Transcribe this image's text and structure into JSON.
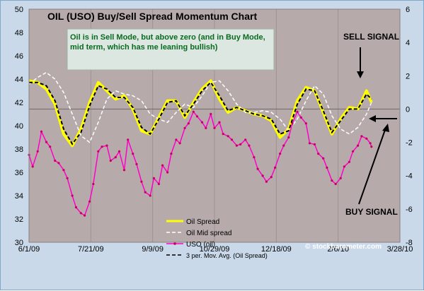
{
  "chart_data": {
    "type": "line",
    "title": "OIL (USO) Buy/Sell Spread Momentum Chart",
    "annotation": "Oil is in Sell Mode, but above zero (and in Buy Mode, mid term, which has me leaning bullish)",
    "annotation_lines": [
      "Oil is in Sell Mode, but above zero (and in Buy Mode,",
      "mid term, which has me leaning bullish)"
    ],
    "signals": {
      "sell": "SELL SIGNAL",
      "buy": "BUY SIGNAL"
    },
    "credit": "© stockbarometer.com",
    "x_tick_labels": [
      "6/1/09",
      "7/21/09",
      "9/9/09",
      "10/29/09",
      "12/18/09",
      "2/6/10",
      "3/28/10"
    ],
    "x_tick_dates": [
      "2009-06-01",
      "2009-07-21",
      "2009-09-09",
      "2009-10-29",
      "2009-12-18",
      "2010-02-06",
      "2010-03-28"
    ],
    "xlim": [
      "2009-06-01",
      "2010-03-28"
    ],
    "y_left": {
      "lim": [
        30,
        50
      ],
      "ticks": [
        30,
        32,
        34,
        36,
        38,
        40,
        42,
        44,
        46,
        48,
        50
      ]
    },
    "y_right": {
      "lim": [
        -8,
        6
      ],
      "ticks": [
        -8,
        -6,
        -4,
        -2,
        0,
        2,
        4,
        6
      ]
    },
    "zero_line": 0,
    "legend": {
      "position": "bottom-center"
    },
    "series": [
      {
        "name": "Oil Spread",
        "axis": "right",
        "color": "#ffff00",
        "style": "solid",
        "x": [
          "2009-06-01",
          "2009-06-08",
          "2009-06-15",
          "2009-06-22",
          "2009-06-29",
          "2009-07-06",
          "2009-07-13",
          "2009-07-20",
          "2009-07-27",
          "2009-08-03",
          "2009-08-10",
          "2009-08-17",
          "2009-08-24",
          "2009-08-31",
          "2009-09-07",
          "2009-09-14",
          "2009-09-21",
          "2009-09-28",
          "2009-10-05",
          "2009-10-12",
          "2009-10-19",
          "2009-10-26",
          "2009-11-02",
          "2009-11-09",
          "2009-11-16",
          "2009-11-23",
          "2009-11-30",
          "2009-12-07",
          "2009-12-14",
          "2009-12-21",
          "2009-12-28",
          "2010-01-04",
          "2010-01-11",
          "2010-01-18",
          "2010-01-25",
          "2010-02-01",
          "2010-02-08",
          "2010-02-15",
          "2010-02-22",
          "2010-03-01",
          "2010-03-05"
        ],
        "y": [
          1.7,
          1.6,
          1.2,
          0.3,
          -1.5,
          -2.2,
          -1.2,
          0.4,
          1.6,
          1.1,
          0.6,
          0.8,
          0.0,
          -1.3,
          -1.5,
          -0.5,
          0.5,
          0.5,
          -0.5,
          0.4,
          1.2,
          1.7,
          0.6,
          -0.2,
          0.1,
          -0.1,
          -0.3,
          -0.4,
          -0.7,
          -1.7,
          -1.2,
          0.5,
          1.3,
          1.1,
          -0.2,
          -1.5,
          -0.6,
          0.1,
          0.0,
          1.1,
          0.4
        ]
      },
      {
        "name": "Oil Mid spread",
        "axis": "right",
        "color": "#ffffff",
        "style": "dashed",
        "x": [
          "2009-06-01",
          "2009-06-08",
          "2009-06-15",
          "2009-06-22",
          "2009-06-29",
          "2009-07-06",
          "2009-07-13",
          "2009-07-20",
          "2009-07-27",
          "2009-08-03",
          "2009-08-10",
          "2009-08-17",
          "2009-08-24",
          "2009-08-31",
          "2009-09-07",
          "2009-09-14",
          "2009-09-21",
          "2009-09-28",
          "2009-10-05",
          "2009-10-12",
          "2009-10-19",
          "2009-10-26",
          "2009-11-02",
          "2009-11-09",
          "2009-11-16",
          "2009-11-23",
          "2009-11-30",
          "2009-12-07",
          "2009-12-14",
          "2009-12-21",
          "2009-12-28",
          "2010-01-04",
          "2010-01-11",
          "2010-01-18",
          "2010-01-25",
          "2010-02-01",
          "2010-02-08",
          "2010-02-15",
          "2010-02-22",
          "2010-03-01",
          "2010-03-05"
        ],
        "y": [
          1.5,
          1.9,
          2.2,
          1.8,
          1.0,
          -0.3,
          -1.6,
          -2.0,
          -0.8,
          0.6,
          1.1,
          0.9,
          0.8,
          0.5,
          -0.3,
          -0.6,
          -0.8,
          -0.2,
          0.3,
          0.1,
          0.8,
          1.6,
          1.7,
          1.1,
          0.3,
          -0.2,
          -0.2,
          -0.1,
          -0.2,
          -0.6,
          -1.3,
          -0.6,
          0.5,
          1.4,
          0.9,
          -0.4,
          -1.2,
          -1.5,
          -1.1,
          -0.3,
          0.4
        ]
      },
      {
        "name": "USO (oil)",
        "axis": "left",
        "color": "#ff00cc",
        "style": "solid-markers",
        "x": [
          "2009-06-01",
          "2009-06-04",
          "2009-06-08",
          "2009-06-11",
          "2009-06-15",
          "2009-06-18",
          "2009-06-22",
          "2009-06-25",
          "2009-06-29",
          "2009-07-02",
          "2009-07-06",
          "2009-07-09",
          "2009-07-13",
          "2009-07-16",
          "2009-07-20",
          "2009-07-23",
          "2009-07-27",
          "2009-07-30",
          "2009-08-03",
          "2009-08-06",
          "2009-08-10",
          "2009-08-13",
          "2009-08-17",
          "2009-08-20",
          "2009-08-24",
          "2009-08-27",
          "2009-08-31",
          "2009-09-03",
          "2009-09-07",
          "2009-09-10",
          "2009-09-14",
          "2009-09-17",
          "2009-09-21",
          "2009-09-24",
          "2009-09-28",
          "2009-10-01",
          "2009-10-05",
          "2009-10-08",
          "2009-10-12",
          "2009-10-15",
          "2009-10-19",
          "2009-10-22",
          "2009-10-26",
          "2009-10-29",
          "2009-11-02",
          "2009-11-05",
          "2009-11-09",
          "2009-11-12",
          "2009-11-16",
          "2009-11-19",
          "2009-11-23",
          "2009-11-26",
          "2009-11-30",
          "2009-12-03",
          "2009-12-07",
          "2009-12-10",
          "2009-12-14",
          "2009-12-17",
          "2009-12-21",
          "2009-12-24",
          "2009-12-28",
          "2009-12-31",
          "2010-01-04",
          "2010-01-07",
          "2010-01-11",
          "2010-01-14",
          "2010-01-18",
          "2010-01-21",
          "2010-01-25",
          "2010-01-28",
          "2010-02-01",
          "2010-02-04",
          "2010-02-08",
          "2010-02-11",
          "2010-02-15",
          "2010-02-18",
          "2010-02-22",
          "2010-02-25",
          "2010-03-01",
          "2010-03-04",
          "2010-03-05"
        ],
        "y": [
          37.5,
          36.5,
          37.8,
          39.5,
          38.6,
          38.2,
          37.0,
          36.8,
          36.2,
          35.5,
          34.0,
          33.0,
          32.5,
          32.3,
          33.5,
          35.0,
          37.8,
          38.2,
          38.3,
          37.0,
          37.3,
          37.8,
          36.2,
          38.8,
          37.6,
          36.7,
          35.2,
          34.3,
          34.0,
          35.5,
          35.0,
          36.6,
          36.0,
          37.6,
          38.8,
          38.5,
          39.8,
          40.2,
          41.2,
          40.8,
          40.3,
          39.8,
          41.0,
          39.8,
          40.3,
          39.3,
          39.1,
          38.8,
          38.3,
          38.4,
          38.8,
          38.3,
          37.3,
          36.3,
          35.7,
          35.2,
          35.6,
          36.4,
          37.6,
          38.3,
          39.0,
          40.2,
          41.2,
          40.7,
          40.2,
          38.5,
          38.4,
          37.6,
          37.2,
          36.4,
          35.3,
          35.0,
          35.5,
          36.5,
          36.9,
          37.8,
          38.3,
          39.1,
          38.9,
          38.5,
          38.2
        ]
      },
      {
        "name": "3 per. Mov. Avg. (Oil Spread)",
        "axis": "right",
        "color": "#000000",
        "style": "dashed",
        "x": [
          "2009-06-01",
          "2009-06-08",
          "2009-06-15",
          "2009-06-22",
          "2009-06-29",
          "2009-07-06",
          "2009-07-13",
          "2009-07-20",
          "2009-07-27",
          "2009-08-03",
          "2009-08-10",
          "2009-08-17",
          "2009-08-24",
          "2009-08-31",
          "2009-09-07",
          "2009-09-14",
          "2009-09-21",
          "2009-09-28",
          "2009-10-05",
          "2009-10-12",
          "2009-10-19",
          "2009-10-26",
          "2009-11-02",
          "2009-11-09",
          "2009-11-16",
          "2009-11-23",
          "2009-11-30",
          "2009-12-07",
          "2009-12-14",
          "2009-12-21",
          "2009-12-28",
          "2010-01-04",
          "2010-01-11",
          "2010-01-18",
          "2010-01-25",
          "2010-02-01",
          "2010-02-08",
          "2010-02-15",
          "2010-02-22",
          "2010-03-01",
          "2010-03-05"
        ],
        "y": [
          1.6,
          1.6,
          1.4,
          0.5,
          -1.2,
          -2.1,
          -1.4,
          0.2,
          1.4,
          1.2,
          0.7,
          0.7,
          0.1,
          -1.1,
          -1.5,
          -0.6,
          0.4,
          0.5,
          -0.4,
          0.3,
          1.1,
          1.6,
          0.8,
          -0.1,
          0.1,
          -0.1,
          -0.3,
          -0.4,
          -0.6,
          -1.5,
          -1.3,
          0.3,
          1.2,
          1.1,
          -0.1,
          -1.4,
          -0.7,
          0.0,
          0.0,
          0.9,
          0.6
        ]
      }
    ]
  }
}
